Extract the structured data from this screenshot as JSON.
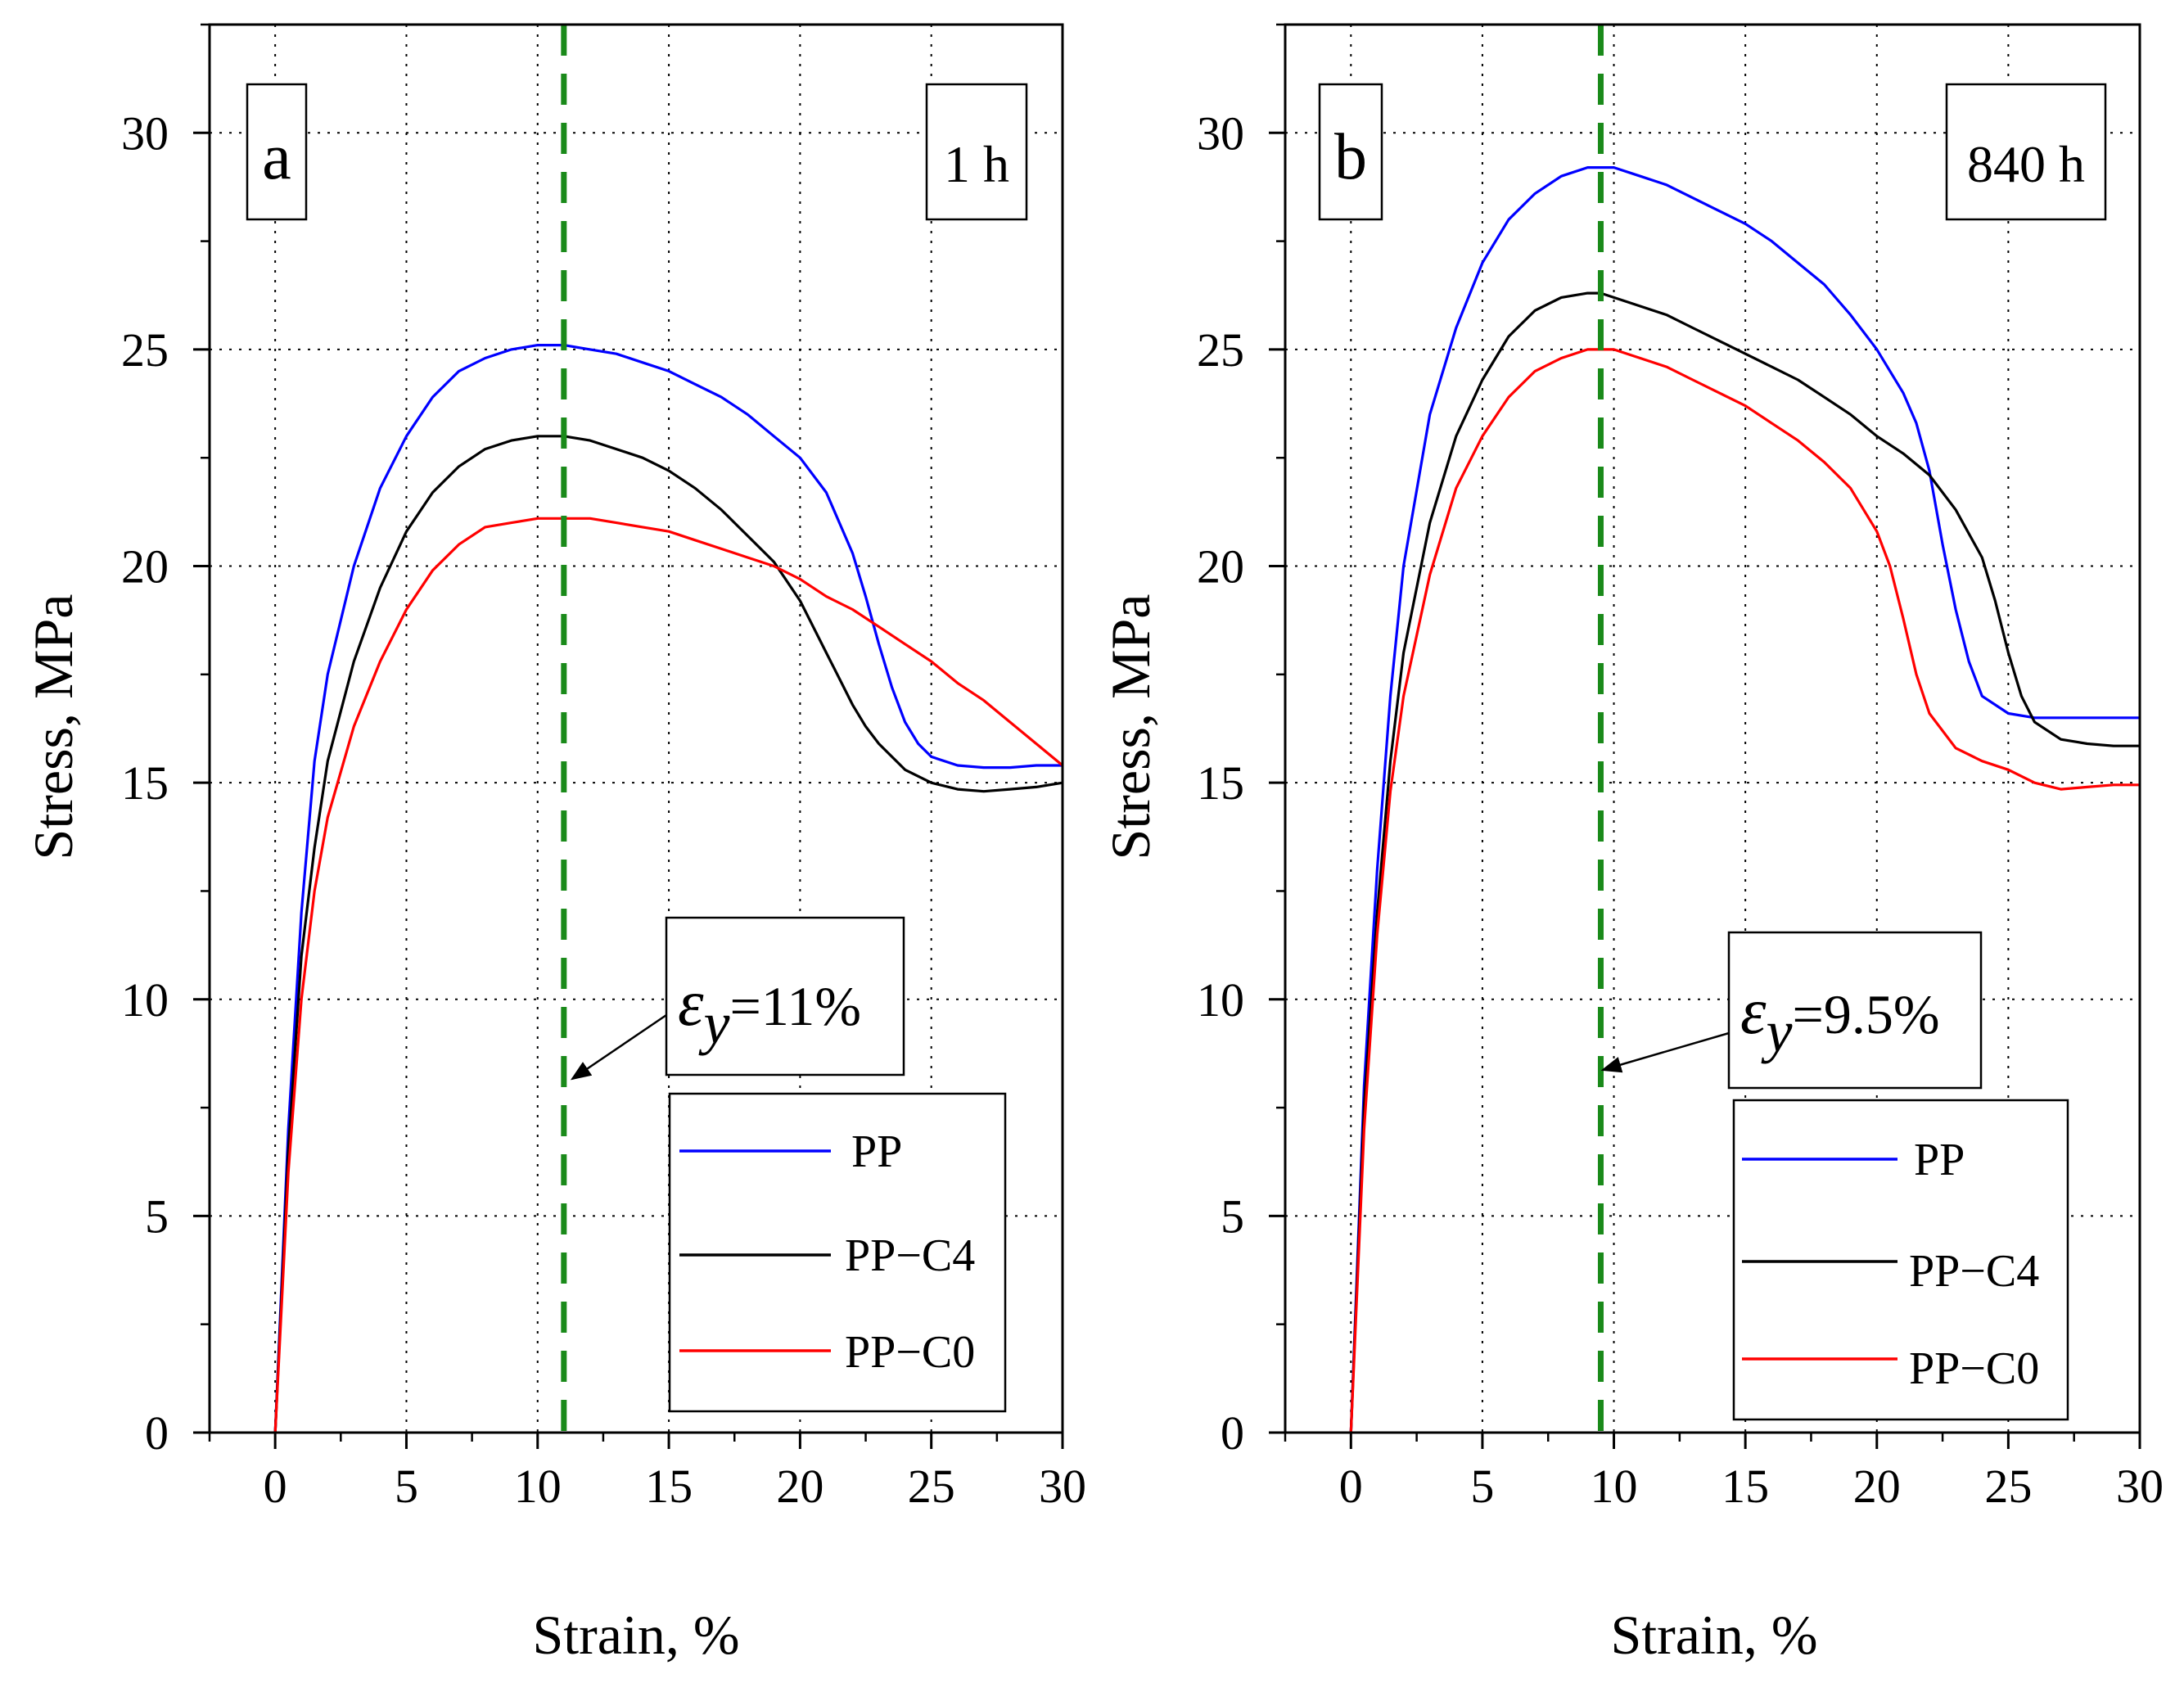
{
  "chart_data": [
    {
      "panel": "a",
      "type": "line",
      "time_label": "1 h",
      "xlabel": "Strain, %",
      "ylabel": "Stress, MPa",
      "xlim": [
        -2.5,
        30
      ],
      "ylim": [
        0,
        32.5
      ],
      "xticks": [
        0,
        5,
        10,
        15,
        20,
        25,
        30
      ],
      "yticks": [
        0,
        5,
        10,
        15,
        20,
        25,
        30
      ],
      "grid": true,
      "legend_position": "bottom-right",
      "yield_strain": 11,
      "annotation": {
        "symbol": "ε",
        "subscript": "y",
        "value": "=11%"
      },
      "series": [
        {
          "name": "PP",
          "color": "#0000ff",
          "x": [
            0,
            0.5,
            1,
            1.5,
            2,
            3,
            4,
            5,
            6,
            7,
            8,
            9,
            10,
            11,
            12,
            13,
            14,
            15,
            16,
            17,
            18,
            19,
            20,
            21,
            22,
            22.5,
            23,
            23.5,
            24,
            24.5,
            25,
            26,
            27,
            28,
            29,
            30
          ],
          "y": [
            0,
            7,
            12,
            15.5,
            17.5,
            20,
            21.8,
            23,
            23.9,
            24.5,
            24.8,
            25,
            25.1,
            25.1,
            25,
            24.9,
            24.7,
            24.5,
            24.2,
            23.9,
            23.5,
            23,
            22.5,
            21.7,
            20.3,
            19.3,
            18.2,
            17.2,
            16.4,
            15.9,
            15.6,
            15.4,
            15.35,
            15.35,
            15.4,
            15.4
          ]
        },
        {
          "name": "PP−C4",
          "color": "#000000",
          "x": [
            0,
            0.5,
            1,
            1.5,
            2,
            3,
            4,
            5,
            6,
            7,
            8,
            9,
            10,
            11,
            12,
            13,
            14,
            15,
            16,
            17,
            18,
            19,
            20,
            20.5,
            21,
            21.5,
            22,
            22.5,
            23,
            23.5,
            24,
            25,
            26,
            27,
            28,
            29,
            30
          ],
          "y": [
            0,
            6.5,
            11,
            13.5,
            15.5,
            17.8,
            19.5,
            20.8,
            21.7,
            22.3,
            22.7,
            22.9,
            23,
            23,
            22.9,
            22.7,
            22.5,
            22.2,
            21.8,
            21.3,
            20.7,
            20.1,
            19.2,
            18.6,
            18,
            17.4,
            16.8,
            16.3,
            15.9,
            15.6,
            15.3,
            15,
            14.85,
            14.8,
            14.85,
            14.9,
            15
          ]
        },
        {
          "name": "PP−C0",
          "color": "#ff0000",
          "x": [
            0,
            0.5,
            1,
            1.5,
            2,
            3,
            4,
            5,
            6,
            7,
            8,
            9,
            10,
            11,
            12,
            13,
            14,
            15,
            16,
            17,
            18,
            19,
            20,
            21,
            22,
            23,
            24,
            25,
            26,
            27,
            28,
            29,
            30
          ],
          "y": [
            0,
            6,
            10,
            12.5,
            14.2,
            16.3,
            17.8,
            19,
            19.9,
            20.5,
            20.9,
            21,
            21.1,
            21.1,
            21.1,
            21,
            20.9,
            20.8,
            20.6,
            20.4,
            20.2,
            20,
            19.7,
            19.3,
            19,
            18.6,
            18.2,
            17.8,
            17.3,
            16.9,
            16.4,
            15.9,
            15.4
          ]
        }
      ]
    },
    {
      "panel": "b",
      "type": "line",
      "time_label": "840 h",
      "xlabel": "Strain, %",
      "ylabel": "Stress, MPa",
      "xlim": [
        -2.5,
        30
      ],
      "ylim": [
        0,
        32.5
      ],
      "xticks": [
        0,
        5,
        10,
        15,
        20,
        25,
        30
      ],
      "yticks": [
        0,
        5,
        10,
        15,
        20,
        25,
        30
      ],
      "grid": true,
      "legend_position": "bottom-right",
      "yield_strain": 9.5,
      "annotation": {
        "symbol": "ε",
        "subscript": "y",
        "value": "=9.5%"
      },
      "series": [
        {
          "name": "PP",
          "color": "#0000ff",
          "x": [
            0,
            0.5,
            1,
            1.5,
            2,
            3,
            4,
            5,
            6,
            7,
            8,
            9,
            9.5,
            10,
            11,
            12,
            13,
            14,
            15,
            16,
            17,
            18,
            19,
            20,
            21,
            21.5,
            22,
            22.5,
            23,
            23.5,
            24,
            25,
            26,
            27,
            28,
            29,
            30
          ],
          "y": [
            0,
            8,
            13,
            17,
            20,
            23.5,
            25.5,
            27,
            28,
            28.6,
            29,
            29.2,
            29.2,
            29.2,
            29,
            28.8,
            28.5,
            28.2,
            27.9,
            27.5,
            27,
            26.5,
            25.8,
            25,
            24,
            23.3,
            22.2,
            20.5,
            19,
            17.8,
            17,
            16.6,
            16.5,
            16.5,
            16.5,
            16.5,
            16.5
          ]
        },
        {
          "name": "PP−C4",
          "color": "#000000",
          "x": [
            0,
            0.5,
            1,
            1.5,
            2,
            3,
            4,
            5,
            6,
            7,
            8,
            9,
            9.5,
            10,
            11,
            12,
            13,
            14,
            15,
            16,
            17,
            18,
            19,
            20,
            21,
            22,
            23,
            24,
            24.5,
            25,
            25.5,
            26,
            27,
            28,
            29,
            30
          ],
          "y": [
            0,
            7.5,
            12,
            15.5,
            18,
            21,
            23,
            24.3,
            25.3,
            25.9,
            26.2,
            26.3,
            26.3,
            26.2,
            26,
            25.8,
            25.5,
            25.2,
            24.9,
            24.6,
            24.3,
            23.9,
            23.5,
            23,
            22.6,
            22.1,
            21.3,
            20.2,
            19.2,
            18,
            17,
            16.4,
            16,
            15.9,
            15.85,
            15.85
          ]
        },
        {
          "name": "PP−C0",
          "color": "#ff0000",
          "x": [
            0,
            0.5,
            1,
            1.5,
            2,
            3,
            4,
            5,
            6,
            7,
            8,
            9,
            9.5,
            10,
            11,
            12,
            13,
            14,
            15,
            16,
            17,
            18,
            19,
            20,
            20.5,
            21,
            21.5,
            22,
            23,
            24,
            25,
            26,
            27,
            28,
            29,
            30
          ],
          "y": [
            0,
            7,
            11.5,
            14.8,
            17,
            19.8,
            21.8,
            23,
            23.9,
            24.5,
            24.8,
            25,
            25,
            25,
            24.8,
            24.6,
            24.3,
            24,
            23.7,
            23.3,
            22.9,
            22.4,
            21.8,
            20.8,
            20,
            18.8,
            17.5,
            16.6,
            15.8,
            15.5,
            15.3,
            15,
            14.85,
            14.9,
            14.95,
            14.95
          ]
        }
      ]
    }
  ]
}
